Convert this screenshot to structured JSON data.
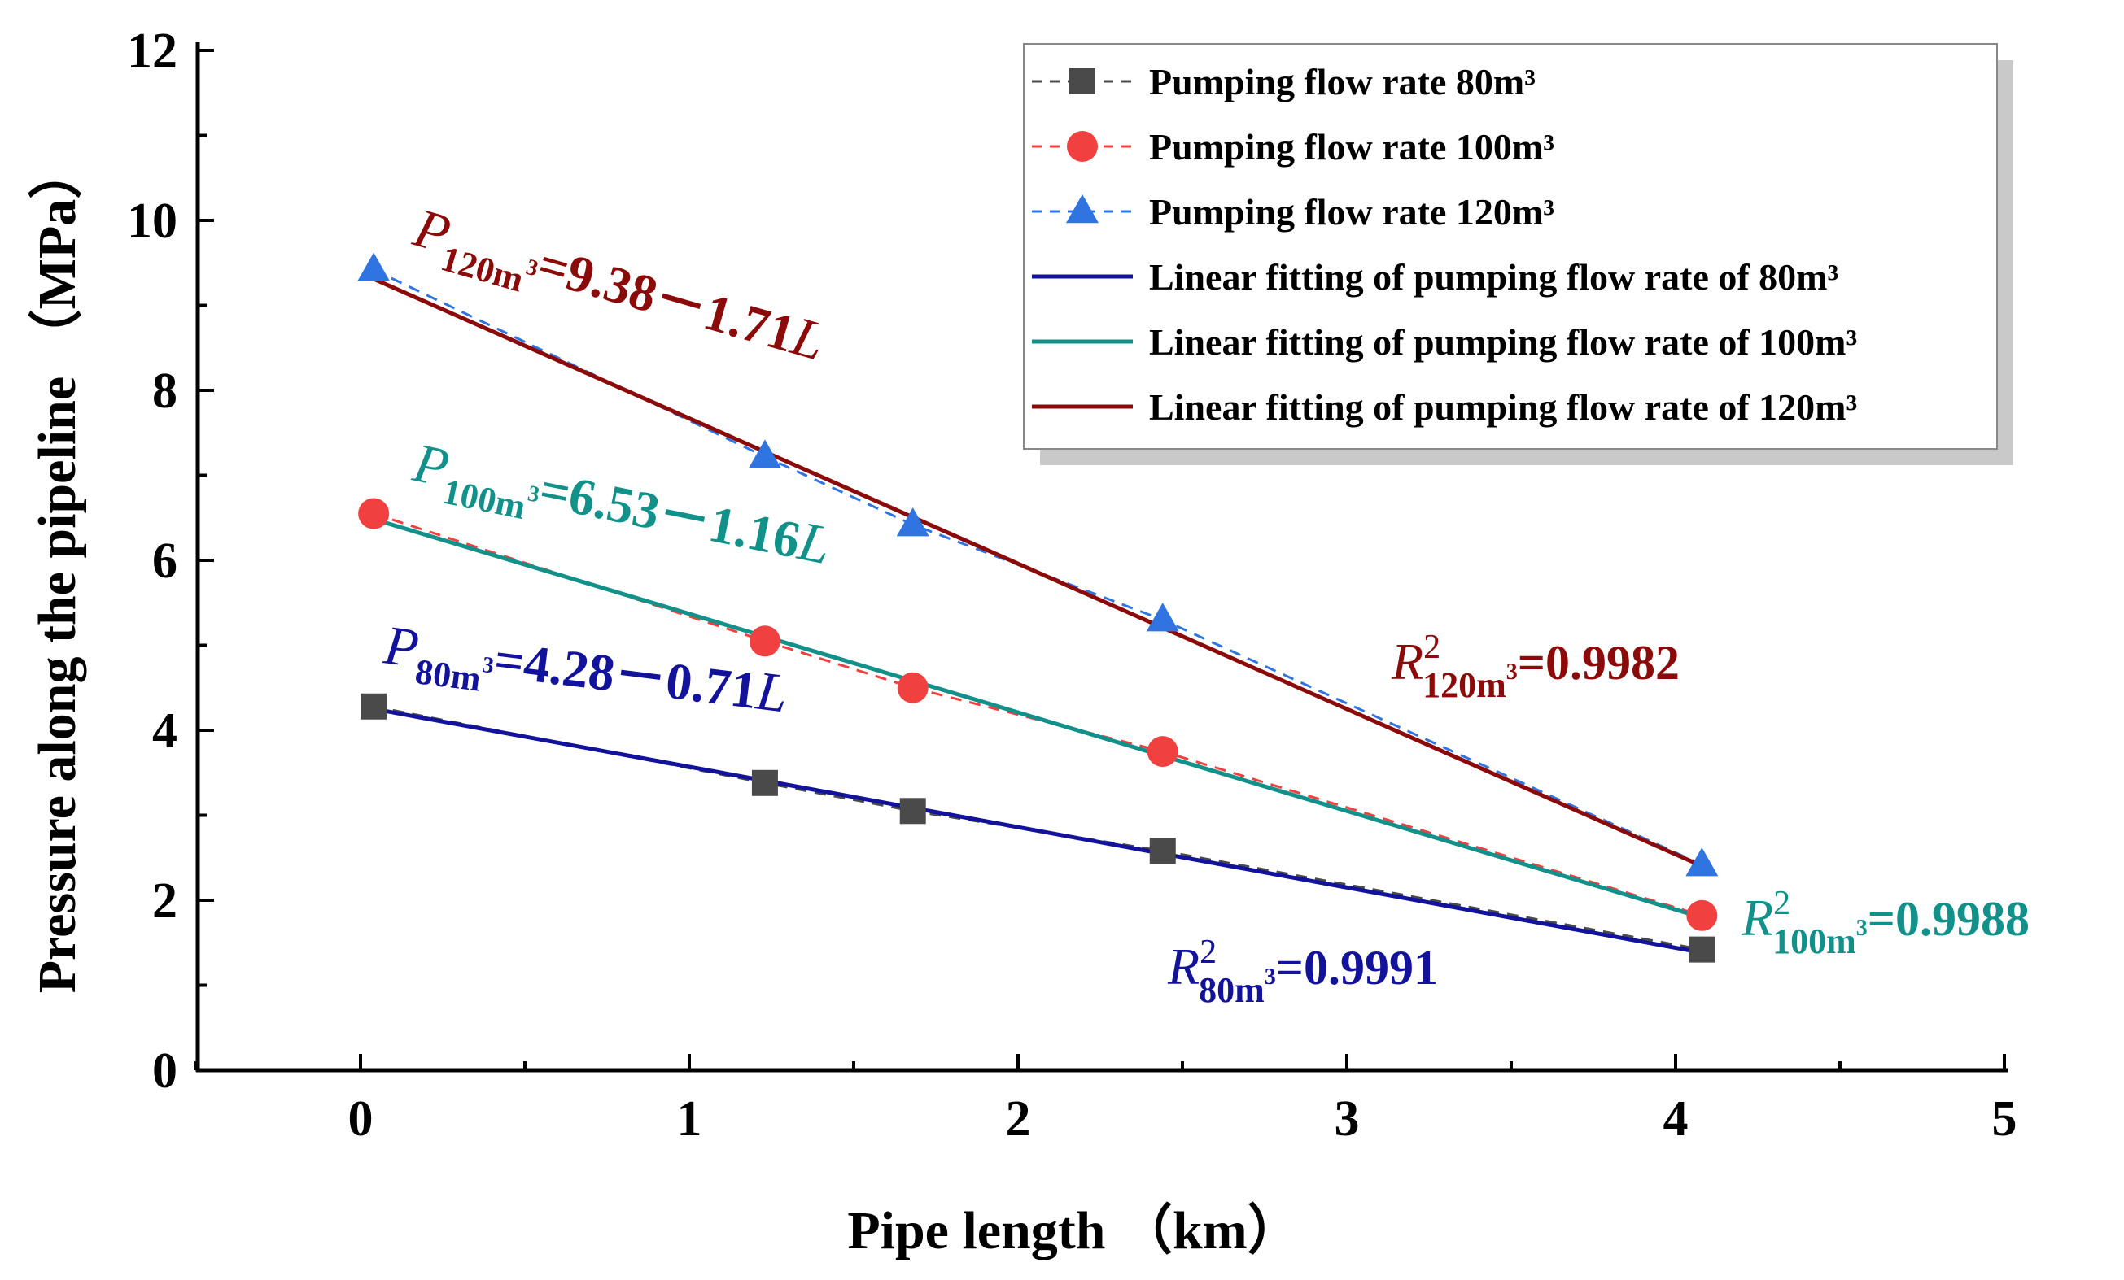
{
  "chart_data": {
    "type": "line",
    "xlabel": "Pipe length （km）",
    "ylabel": "Pressure along the pipeline （MPa）",
    "xlim": [
      -0.5,
      5
    ],
    "ylim": [
      0,
      12
    ],
    "x_ticks": [
      "0",
      "1",
      "2",
      "3",
      "4",
      "5"
    ],
    "y_ticks": [
      "0",
      "2",
      "4",
      "6",
      "8",
      "10",
      "12"
    ],
    "grid": false,
    "legend_position": "top-right",
    "series": [
      {
        "name": "Pumping flow rate 80m³",
        "kind": "scatter-dashed",
        "marker": "square",
        "color": "#4a4a4a",
        "x": [
          0.04,
          1.23,
          1.68,
          2.44,
          4.08
        ],
        "y": [
          4.28,
          3.38,
          3.05,
          2.58,
          1.42
        ]
      },
      {
        "name": "Pumping flow rate 100m³",
        "kind": "scatter-dashed",
        "marker": "circle",
        "color": "#f04040",
        "x": [
          0.04,
          1.23,
          1.68,
          2.44,
          4.08
        ],
        "y": [
          6.55,
          5.05,
          4.5,
          3.75,
          1.82
        ]
      },
      {
        "name": "Pumping flow rate 120m³",
        "kind": "scatter-dashed",
        "marker": "triangle",
        "color": "#2f74e0",
        "x": [
          0.04,
          1.23,
          1.68,
          2.44,
          4.08
        ],
        "y": [
          9.42,
          7.22,
          6.42,
          5.3,
          2.42
        ]
      },
      {
        "name": "Linear fitting of pumping flow rate of 80m³",
        "kind": "fit",
        "color": "#12129a",
        "intercept": 4.28,
        "slope": -0.71,
        "x_range": [
          0.04,
          4.08
        ]
      },
      {
        "name": "Linear fitting of pumping flow rate of 100m³",
        "kind": "fit",
        "color": "#12908a",
        "intercept": 6.53,
        "slope": -1.16,
        "x_range": [
          0.04,
          4.08
        ]
      },
      {
        "name": "Linear fitting of pumping flow rate of 120m³",
        "kind": "fit",
        "color": "#8b0a0a",
        "intercept": 9.38,
        "slope": -1.71,
        "x_range": [
          0.04,
          4.08
        ]
      }
    ],
    "annotations": {
      "eq120": {
        "var": "P",
        "sub": "120m",
        "sup": "3",
        "rhs": "=9.38－1.71",
        "tail": "L",
        "color": "#8b0a0a"
      },
      "eq100": {
        "var": "P",
        "sub": "100m",
        "sup": "3",
        "rhs": "=6.53－1.16",
        "tail": "L",
        "color": "#12908a"
      },
      "eq80": {
        "var": "P",
        "sub": "80m",
        "sup": "3",
        "rhs": "=4.28－0.71",
        "tail": "L",
        "color": "#12129a"
      },
      "r120": {
        "var": "R",
        "sup2": "2",
        "sub": "120m",
        "sup": "3",
        "rhs": "=0.9982",
        "color": "#8b0a0a"
      },
      "r100": {
        "var": "R",
        "sup2": "2",
        "sub": "100m",
        "sup": "3",
        "rhs": "=0.9988",
        "color": "#12908a"
      },
      "r80": {
        "var": "R",
        "sup2": "2",
        "sub": "80m",
        "sup": "3",
        "rhs": "=0.9991",
        "color": "#12129a"
      }
    }
  }
}
